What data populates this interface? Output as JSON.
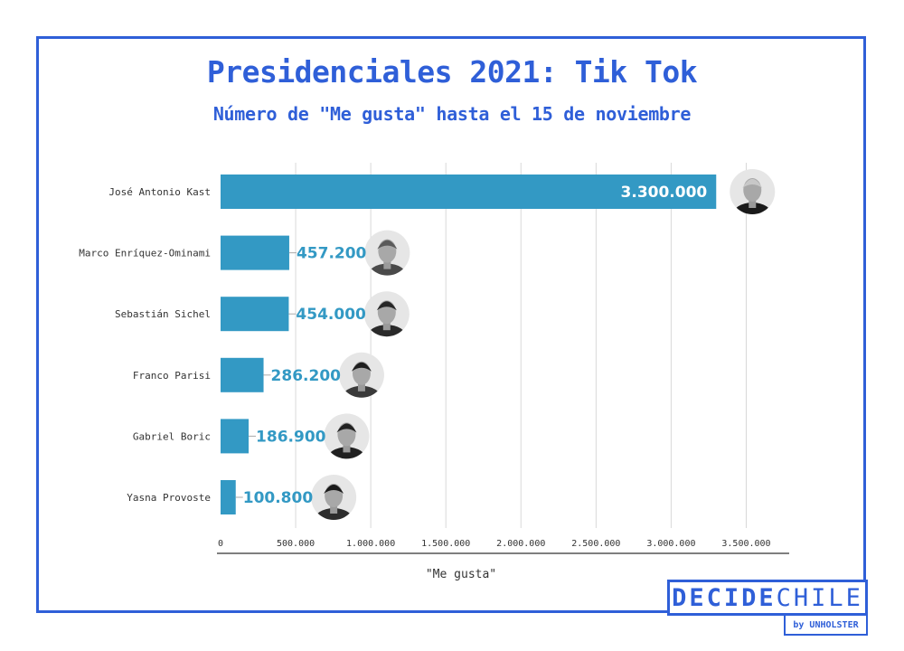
{
  "chart_data": {
    "type": "bar",
    "orientation": "horizontal",
    "title": "Presidenciales 2021: Tik Tok",
    "subtitle": "Número de \"Me gusta\" hasta el 15 de noviembre",
    "xlabel": "\"Me gusta\"",
    "ylabel": "",
    "xlim": [
      0,
      3700000
    ],
    "x_ticks": [
      0,
      500000,
      1000000,
      1500000,
      2000000,
      2500000,
      3000000,
      3500000
    ],
    "x_tick_labels": [
      "0",
      "500.000",
      "1.000.000",
      "1.500.000",
      "2.000.000",
      "2.500.000",
      "3.000.000",
      "3.500.000"
    ],
    "grid": "vertical",
    "categories": [
      "José Antonio Kast",
      "Marco Enríquez-Ominami",
      "Sebastián Sichel",
      "Franco Parisi",
      "Gabriel Boric",
      "Yasna Provoste"
    ],
    "values": [
      3300000,
      457200,
      454000,
      286200,
      186900,
      100800
    ],
    "data_labels": [
      "3.300.000",
      "457.200",
      "454.000",
      "286.200",
      "186.900",
      "100.800"
    ],
    "bar_color": "#3399c4"
  },
  "branding": {
    "logo_bold": "DECIDE",
    "logo_light": "CHILE",
    "byline": "by UNHOLSTER"
  },
  "colors": {
    "accent": "#2f5fd8",
    "bar": "#3399c4",
    "grid": "#d9d9d9",
    "text": "#333333"
  }
}
